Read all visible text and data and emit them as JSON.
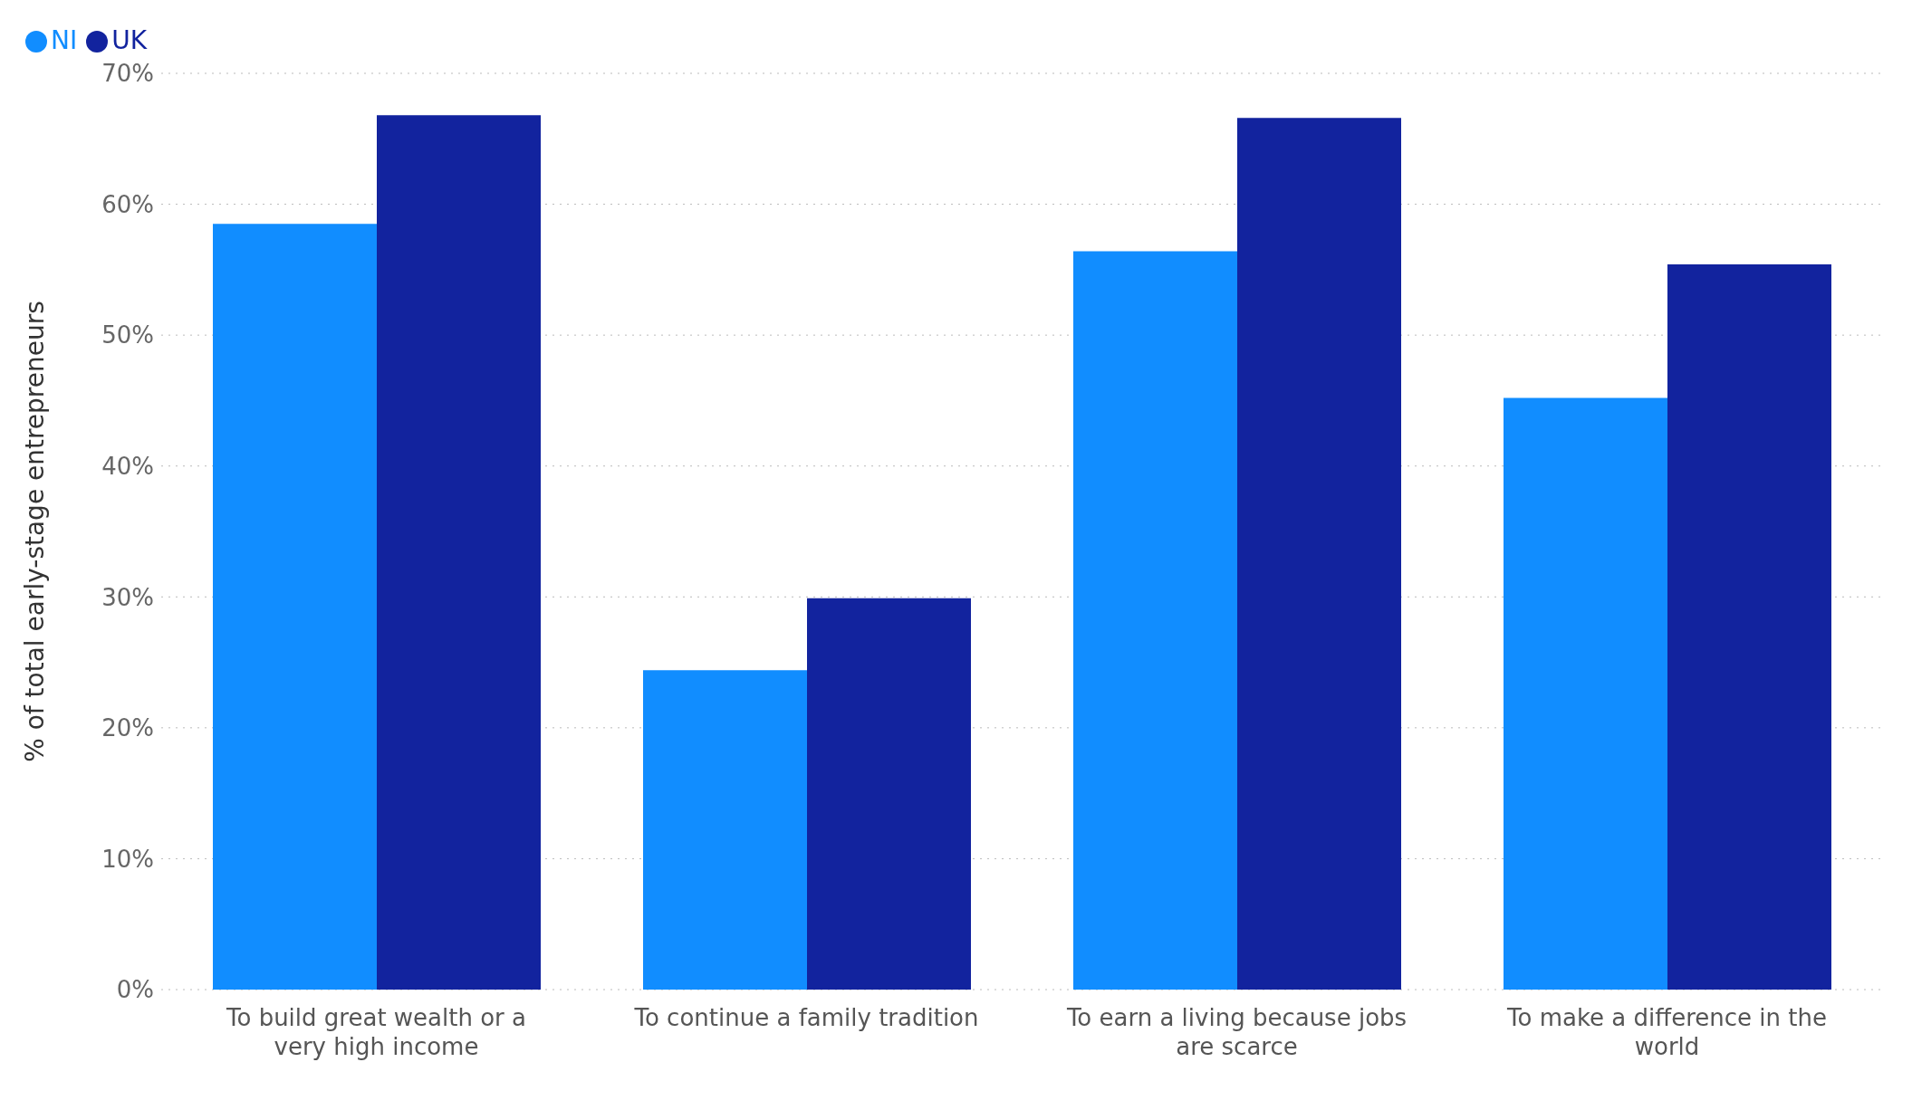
{
  "chart_data": {
    "type": "bar",
    "ylabel": "% of total early-stage entrepreneurs",
    "categories": [
      "To build great wealth or a very high income",
      "To continue a family tradition",
      "To earn a living because jobs are scarce",
      "To make a difference in the world"
    ],
    "series": [
      {
        "name": "NI",
        "color": "#118dff",
        "values": [
          58.5,
          24.4,
          56.4,
          45.2
        ]
      },
      {
        "name": "UK",
        "color": "#12239e",
        "values": [
          66.8,
          29.9,
          66.6,
          55.4
        ]
      }
    ],
    "ylim": [
      0,
      70
    ],
    "yticks": [
      {
        "value": 0,
        "label": "0%"
      },
      {
        "value": 10,
        "label": "10%"
      },
      {
        "value": 20,
        "label": "20%"
      },
      {
        "value": 30,
        "label": "30%"
      },
      {
        "value": 40,
        "label": "40%"
      },
      {
        "value": 50,
        "label": "50%"
      },
      {
        "value": 60,
        "label": "60%"
      },
      {
        "value": 70,
        "label": "70%"
      }
    ],
    "grid": "y",
    "legend": "top left"
  }
}
